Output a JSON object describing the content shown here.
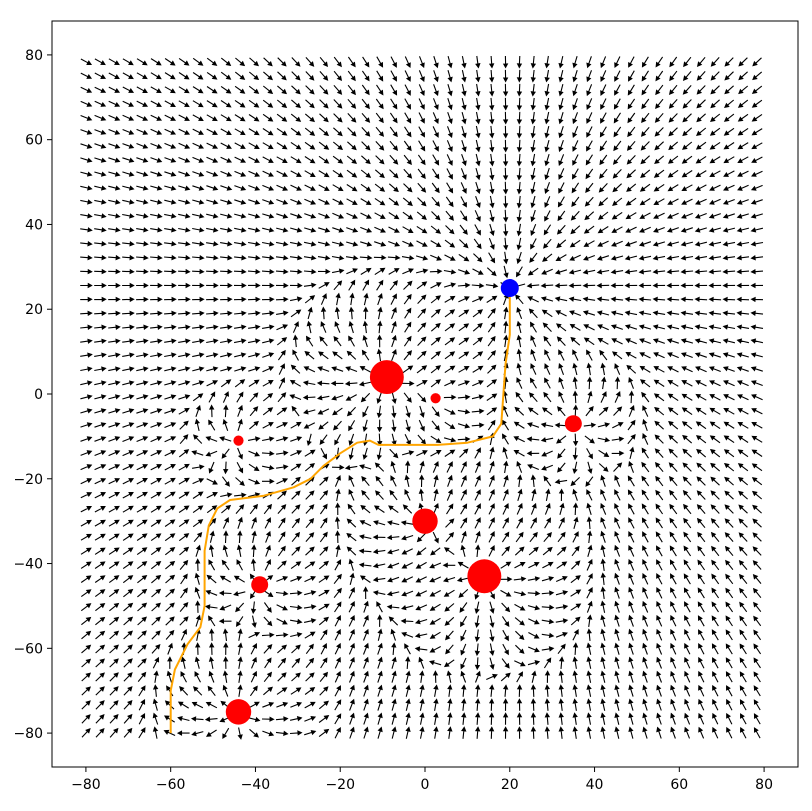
{
  "chart_data": {
    "type": "quiver",
    "title": "",
    "xlabel": "",
    "ylabel": "",
    "xlim": [
      -88,
      88
    ],
    "ylim": [
      -88,
      88
    ],
    "x_ticks": [
      -80,
      -60,
      -40,
      -20,
      0,
      20,
      40,
      60,
      80
    ],
    "x_tick_labels": [
      "−80",
      "−60",
      "−40",
      "−20",
      "0",
      "20",
      "40",
      "60",
      "80"
    ],
    "y_ticks": [
      -80,
      -60,
      -40,
      -20,
      0,
      20,
      40,
      60,
      80
    ],
    "y_tick_labels": [
      "−80",
      "−60",
      "−40",
      "−20",
      "0",
      "20",
      "40",
      "60",
      "80"
    ],
    "grid": false,
    "vector_field": {
      "x_range": [
        -80,
        80
      ],
      "y_range": [
        -80,
        80
      ],
      "spacing": 3.3,
      "color": "#000000",
      "description": "Unit direction arrows of a potential field; obstacles repel, goal attracts"
    },
    "goal": {
      "x": 20,
      "y": 25,
      "color": "#0000ff"
    },
    "obstacles": [
      {
        "x": -9,
        "y": 4,
        "r": 4.0
      },
      {
        "x": 2.5,
        "y": -1,
        "r": 1.2
      },
      {
        "x": -44,
        "y": -11,
        "r": 1.2
      },
      {
        "x": 35,
        "y": -7,
        "r": 2.0
      },
      {
        "x": 0,
        "y": -30,
        "r": 3.0
      },
      {
        "x": 14,
        "y": -43,
        "r": 4.0
      },
      {
        "x": -39,
        "y": -45,
        "r": 2.0
      },
      {
        "x": -44,
        "y": -75,
        "r": 3.0
      }
    ],
    "obstacle_color": "#ff0000",
    "path": {
      "color": "#ffa500",
      "points": [
        [
          -60,
          -80
        ],
        [
          -60,
          -70
        ],
        [
          -59,
          -65
        ],
        [
          -56,
          -59
        ],
        [
          -53,
          -55
        ],
        [
          -52,
          -50
        ],
        [
          -52,
          -44
        ],
        [
          -52,
          -37
        ],
        [
          -51,
          -31
        ],
        [
          -49,
          -27
        ],
        [
          -46,
          -25
        ],
        [
          -38,
          -24
        ],
        [
          -31,
          -22
        ],
        [
          -27,
          -20
        ],
        [
          -24,
          -17
        ],
        [
          -20,
          -14
        ],
        [
          -16,
          -11.5
        ],
        [
          -13,
          -11
        ],
        [
          -11,
          -12
        ],
        [
          -5,
          -12
        ],
        [
          3,
          -12
        ],
        [
          10,
          -11.5
        ],
        [
          16,
          -10
        ],
        [
          18,
          -7
        ],
        [
          18.5,
          0
        ],
        [
          19,
          7
        ],
        [
          20,
          14
        ],
        [
          20,
          22
        ],
        [
          20,
          25
        ]
      ]
    }
  }
}
